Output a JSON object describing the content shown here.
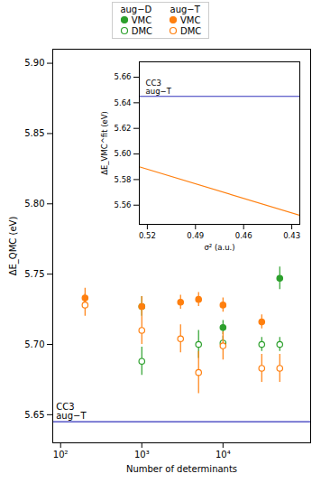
{
  "chart_data": [
    {
      "type": "scatter",
      "xlabel": "Number of determinants",
      "ylabel": "ΔE_QMC (eV)",
      "log": "x",
      "xlim": [
        80,
        120000
      ],
      "xticks": [
        {
          "value": 100,
          "label": "10²"
        },
        {
          "value": 1000,
          "label": "10³"
        },
        {
          "value": 10000,
          "label": "10⁴"
        }
      ],
      "ylim": [
        5.63,
        5.91
      ],
      "yticks": [
        5.65,
        {
          "value": 5.7,
          "label": "5.70"
        },
        5.75,
        {
          "value": 5.8,
          "label": "5.80"
        },
        5.85,
        {
          "value": 5.9,
          "label": "5.90"
        }
      ],
      "grid": false,
      "legend": "upper center",
      "reference_lines": [
        {
          "y": 5.645,
          "color": "#3333bb"
        }
      ],
      "annotations": [
        {
          "text": "CC3\naug−T",
          "x": 88,
          "y": 5.645
        }
      ],
      "series": [
        {
          "name": "VMC",
          "group": "aug−D",
          "color": "#2ca02c",
          "marker": "circle",
          "x": [
            1000,
            10000,
            50000
          ],
          "values": [
            5.727,
            5.712,
            5.747
          ],
          "yerr": [
            0.007,
            0.005,
            0.008
          ]
        },
        {
          "name": "DMC",
          "group": "aug−D",
          "color": "#2ca02c",
          "marker": "circle_open",
          "x": [
            1000,
            5000,
            10000,
            30000,
            50000
          ],
          "values": [
            5.688,
            5.7,
            5.701,
            5.7,
            5.7
          ],
          "yerr": [
            0.01,
            0.01,
            0.005,
            0.005,
            0.005
          ]
        },
        {
          "name": "VMC",
          "group": "aug−T",
          "color": "#ff7f0e",
          "marker": "circle",
          "x": [
            200,
            1000,
            3000,
            5000,
            10000,
            30000
          ],
          "values": [
            5.733,
            5.727,
            5.73,
            5.732,
            5.728,
            5.716
          ],
          "yerr": [
            0.007,
            0.007,
            0.005,
            0.005,
            0.005,
            0.005
          ]
        },
        {
          "name": "DMC",
          "group": "aug−T",
          "color": "#ff7f0e",
          "marker": "circle_open",
          "x": [
            200,
            1000,
            3000,
            5000,
            10000,
            30000,
            50000
          ],
          "values": [
            5.728,
            5.71,
            5.704,
            5.68,
            5.699,
            5.683,
            5.683
          ],
          "yerr": [
            0.008,
            0.01,
            0.01,
            0.015,
            0.01,
            0.01,
            0.01
          ]
        }
      ]
    },
    {
      "type": "line",
      "xlabel": "σ² (a.u.)",
      "ylabel": "ΔE_VMC^fit (eV)",
      "xlim": [
        0.525,
        0.425
      ],
      "xticks": [
        0.52,
        0.49,
        0.46,
        0.43
      ],
      "ylim": [
        5.545,
        5.672
      ],
      "yticks": [
        5.56,
        5.58,
        {
          "value": 5.6,
          "label": "5.60"
        },
        5.62,
        5.64,
        5.66
      ],
      "grid": false,
      "reference_lines": [
        {
          "y": 5.645,
          "color": "#3333bb"
        }
      ],
      "annotations": [
        {
          "text": "CC3\naug−T",
          "x": 0.521,
          "y": 5.645
        }
      ],
      "series": [
        {
          "color": "#ff7f0e",
          "x": [
            0.525,
            0.425
          ],
          "values": [
            5.59,
            5.552
          ]
        }
      ]
    }
  ]
}
